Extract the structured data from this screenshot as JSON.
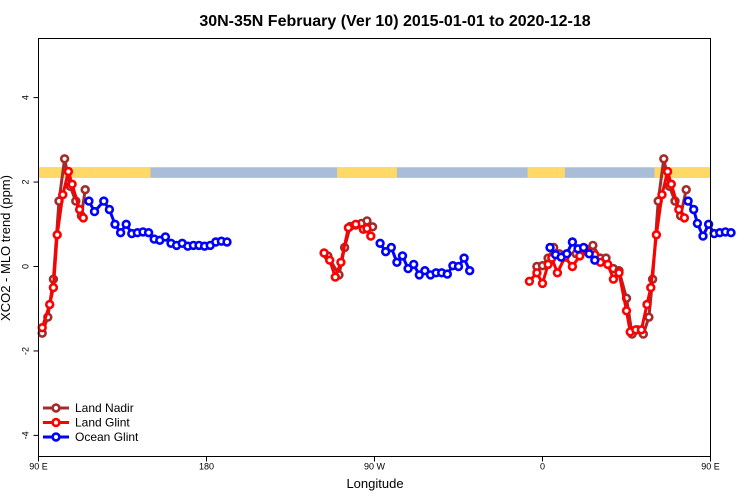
{
  "chart_data": {
    "type": "line",
    "title": "30N-35N February (Ver 10)   2015-01-01 to 2020-12-18",
    "xlabel": "Longitude",
    "ylabel": "XCO2 - MLO trend (ppm)",
    "xlim": [
      90,
      450
    ],
    "ylim": [
      -4.5,
      5.4
    ],
    "x_ticks": [
      {
        "value": 90,
        "label": "90 E"
      },
      {
        "value": 180,
        "label": "180"
      },
      {
        "value": 270,
        "label": "90 W"
      },
      {
        "value": 360,
        "label": "0"
      },
      {
        "value": 450,
        "label": "90 E"
      },
      {
        "value": 540,
        "label": "180"
      }
    ],
    "y_ticks": [
      {
        "value": -4,
        "label": "-4"
      },
      {
        "value": -2,
        "label": "-2"
      },
      {
        "value": 0,
        "label": "0"
      },
      {
        "value": 2,
        "label": "2"
      },
      {
        "value": 4,
        "label": "4"
      }
    ],
    "x_axis_note": "the x axis wraps around the globe: 90 E on the left, 180 at 540 in the continuous scale",
    "grid": false,
    "legend_position": "bottom-left",
    "land_mask_band": {
      "y_range": [
        2.1,
        2.35
      ],
      "land_color": "#FFD966",
      "ocean_color": "#A9BCD8",
      "land_lon_ranges": [
        [
          90,
          118
        ],
        [
          118,
          142
        ],
        [
          142,
          150
        ],
        [
          250,
          278
        ],
        [
          278,
          282
        ],
        [
          352,
          368
        ],
        [
          368,
          372
        ],
        [
          420,
          478
        ],
        [
          478,
          502
        ],
        [
          502,
          510
        ]
      ]
    },
    "series": [
      {
        "name": "Land Nadir",
        "color": "#A52A2A",
        "segments": [
          [
            {
              "x": 92,
              "y": -1.58
            },
            {
              "x": 95,
              "y": -1.2
            },
            {
              "x": 98,
              "y": -0.3
            },
            {
              "x": 101,
              "y": 1.55
            },
            {
              "x": 104,
              "y": 2.55
            },
            {
              "x": 107,
              "y": 1.9
            },
            {
              "x": 110,
              "y": 1.55
            },
            {
              "x": 113,
              "y": 1.2
            },
            {
              "x": 115,
              "y": 1.82
            }
          ],
          [
            {
              "x": 245,
              "y": 0.25
            },
            {
              "x": 251,
              "y": -0.2
            },
            {
              "x": 254,
              "y": 0.45
            },
            {
              "x": 257,
              "y": 0.95
            },
            {
              "x": 260,
              "y": 0.98
            },
            {
              "x": 263,
              "y": 1.02
            },
            {
              "x": 266,
              "y": 1.08
            },
            {
              "x": 269,
              "y": 0.94
            }
          ],
          [
            {
              "x": 357,
              "y": 0.0
            },
            {
              "x": 360,
              "y": 0.02
            },
            {
              "x": 363,
              "y": 0.2
            },
            {
              "x": 366,
              "y": 0.45
            },
            {
              "x": 369,
              "y": 0.3
            },
            {
              "x": 373,
              "y": 0.3
            },
            {
              "x": 378,
              "y": 0.3
            },
            {
              "x": 383,
              "y": 0.42
            },
            {
              "x": 387,
              "y": 0.5
            },
            {
              "x": 391,
              "y": 0.2
            },
            {
              "x": 394,
              "y": 0.2
            },
            {
              "x": 398,
              "y": -0.05
            },
            {
              "x": 401,
              "y": -0.1
            },
            {
              "x": 405,
              "y": -0.75
            },
            {
              "x": 408,
              "y": -1.6
            },
            {
              "x": 411,
              "y": -1.5
            },
            {
              "x": 414,
              "y": -1.6
            },
            {
              "x": 417,
              "y": -1.2
            },
            {
              "x": 419,
              "y": -0.3
            },
            {
              "x": 422,
              "y": 1.55
            },
            {
              "x": 425,
              "y": 2.55
            },
            {
              "x": 428,
              "y": 1.9
            },
            {
              "x": 431,
              "y": 1.55
            },
            {
              "x": 434,
              "y": 1.2
            },
            {
              "x": 437,
              "y": 1.82
            }
          ]
        ]
      },
      {
        "name": "Land Glint",
        "color": "#FF0000",
        "segments": [
          [
            {
              "x": 92,
              "y": -1.45
            },
            {
              "x": 96,
              "y": -0.9
            },
            {
              "x": 98,
              "y": -0.5
            },
            {
              "x": 100,
              "y": 0.75
            },
            {
              "x": 103,
              "y": 1.7
            },
            {
              "x": 106,
              "y": 2.25
            },
            {
              "x": 108,
              "y": 1.95
            },
            {
              "x": 112,
              "y": 1.35
            },
            {
              "x": 114,
              "y": 1.15
            }
          ],
          [
            {
              "x": 243,
              "y": 0.32
            },
            {
              "x": 246,
              "y": 0.15
            },
            {
              "x": 249,
              "y": -0.25
            },
            {
              "x": 252,
              "y": 0.1
            },
            {
              "x": 256,
              "y": 0.92
            },
            {
              "x": 260,
              "y": 1.0
            },
            {
              "x": 264,
              "y": 0.88
            },
            {
              "x": 266,
              "y": 0.9
            },
            {
              "x": 268,
              "y": 0.72
            }
          ],
          [
            {
              "x": 353,
              "y": -0.35
            },
            {
              "x": 357,
              "y": -0.15
            },
            {
              "x": 360,
              "y": -0.4
            },
            {
              "x": 363,
              "y": 0.05
            },
            {
              "x": 365,
              "y": 0.2
            },
            {
              "x": 368,
              "y": -0.15
            },
            {
              "x": 372,
              "y": 0.22
            },
            {
              "x": 376,
              "y": 0.0
            },
            {
              "x": 380,
              "y": 0.25
            },
            {
              "x": 384,
              "y": 0.35
            },
            {
              "x": 388,
              "y": 0.28
            },
            {
              "x": 391,
              "y": 0.1
            },
            {
              "x": 395,
              "y": 0.05
            },
            {
              "x": 398,
              "y": -0.3
            },
            {
              "x": 401,
              "y": -0.15
            },
            {
              "x": 405,
              "y": -1.05
            },
            {
              "x": 407,
              "y": -1.55
            },
            {
              "x": 410,
              "y": -1.5
            },
            {
              "x": 413,
              "y": -1.5
            },
            {
              "x": 416,
              "y": -0.9
            },
            {
              "x": 418,
              "y": -0.5
            },
            {
              "x": 421,
              "y": 0.75
            },
            {
              "x": 424,
              "y": 1.7
            },
            {
              "x": 427,
              "y": 2.25
            },
            {
              "x": 429,
              "y": 1.95
            },
            {
              "x": 433,
              "y": 1.35
            },
            {
              "x": 436,
              "y": 1.15
            }
          ]
        ]
      },
      {
        "name": "Ocean Glint",
        "color": "#0000FF",
        "segments": [
          [
            {
              "x": 117,
              "y": 1.55
            },
            {
              "x": 120,
              "y": 1.3
            },
            {
              "x": 125,
              "y": 1.55
            },
            {
              "x": 128,
              "y": 1.35
            },
            {
              "x": 131,
              "y": 1.0
            },
            {
              "x": 134,
              "y": 0.8
            },
            {
              "x": 137,
              "y": 1.0
            },
            {
              "x": 140,
              "y": 0.78
            },
            {
              "x": 143,
              "y": 0.8
            },
            {
              "x": 146,
              "y": 0.82
            },
            {
              "x": 149,
              "y": 0.8
            },
            {
              "x": 152,
              "y": 0.65
            },
            {
              "x": 155,
              "y": 0.62
            },
            {
              "x": 158,
              "y": 0.7
            },
            {
              "x": 161,
              "y": 0.55
            },
            {
              "x": 164,
              "y": 0.5
            },
            {
              "x": 167,
              "y": 0.55
            },
            {
              "x": 170,
              "y": 0.48
            },
            {
              "x": 173,
              "y": 0.5
            },
            {
              "x": 176,
              "y": 0.5
            },
            {
              "x": 179,
              "y": 0.48
            },
            {
              "x": 182,
              "y": 0.5
            },
            {
              "x": 185,
              "y": 0.58
            },
            {
              "x": 188,
              "y": 0.6
            },
            {
              "x": 191,
              "y": 0.58
            }
          ],
          [
            {
              "x": 273,
              "y": 0.55
            },
            {
              "x": 276,
              "y": 0.35
            },
            {
              "x": 279,
              "y": 0.45
            },
            {
              "x": 282,
              "y": 0.1
            },
            {
              "x": 285,
              "y": 0.25
            },
            {
              "x": 288,
              "y": -0.05
            },
            {
              "x": 291,
              "y": 0.05
            },
            {
              "x": 294,
              "y": -0.2
            },
            {
              "x": 297,
              "y": -0.1
            },
            {
              "x": 300,
              "y": -0.2
            },
            {
              "x": 303,
              "y": -0.15
            },
            {
              "x": 306,
              "y": -0.15
            },
            {
              "x": 309,
              "y": -0.18
            },
            {
              "x": 312,
              "y": 0.02
            },
            {
              "x": 315,
              "y": 0.0
            },
            {
              "x": 318,
              "y": 0.2
            },
            {
              "x": 321,
              "y": -0.1
            }
          ],
          [
            {
              "x": 364,
              "y": 0.45
            },
            {
              "x": 367,
              "y": 0.28
            },
            {
              "x": 370,
              "y": 0.22
            },
            {
              "x": 373,
              "y": 0.3
            },
            {
              "x": 376,
              "y": 0.58
            },
            {
              "x": 379,
              "y": 0.42
            },
            {
              "x": 382,
              "y": 0.45
            },
            {
              "x": 385,
              "y": 0.3
            },
            {
              "x": 388,
              "y": 0.15
            }
          ],
          [
            {
              "x": 438,
              "y": 1.55
            },
            {
              "x": 441,
              "y": 1.35
            },
            {
              "x": 443,
              "y": 1.02
            },
            {
              "x": 446,
              "y": 0.72
            },
            {
              "x": 449,
              "y": 1.0
            },
            {
              "x": 452,
              "y": 0.78
            },
            {
              "x": 455,
              "y": 0.8
            },
            {
              "x": 458,
              "y": 0.82
            },
            {
              "x": 461,
              "y": 0.8
            }
          ]
        ]
      }
    ]
  }
}
